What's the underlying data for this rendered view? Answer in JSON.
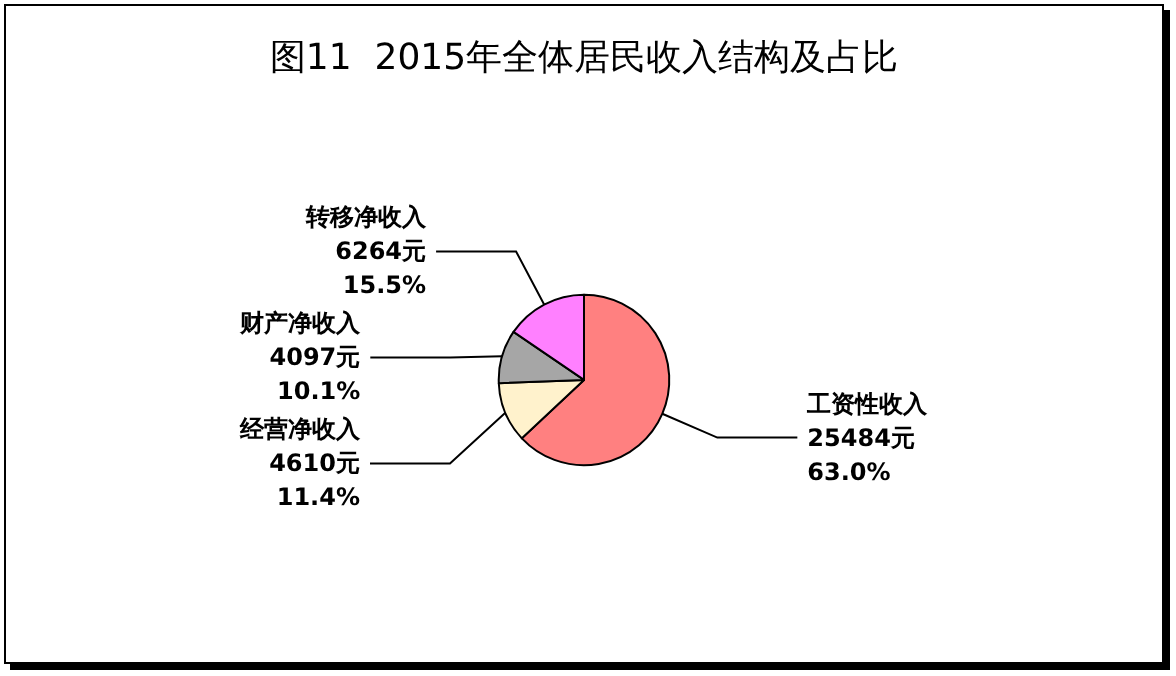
{
  "chart_data": {
    "type": "pie",
    "title": "图11  2015年全体居民收入结构及占比",
    "categories": [
      "工资性收入",
      "经营净收入",
      "财产净收入",
      "转移净收入"
    ],
    "values": [
      25484,
      4610,
      4097,
      6264
    ],
    "value_labels": [
      "25484元\n63.0%",
      "4610元\n11.4%",
      "4097元\n10.1%",
      "6264元\n15.5%"
    ],
    "colors": [
      "#ff8080",
      "#fff2cc",
      "#a6a6a6",
      "#ff80ff"
    ],
    "legend": false
  }
}
